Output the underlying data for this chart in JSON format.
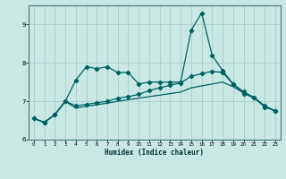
{
  "xlabel": "Humidex (Indice chaleur)",
  "xlim": [
    -0.5,
    23.5
  ],
  "ylim": [
    6,
    9.5
  ],
  "yticks": [
    6,
    7,
    8,
    9
  ],
  "xticks": [
    0,
    1,
    2,
    3,
    4,
    5,
    6,
    7,
    8,
    9,
    10,
    11,
    12,
    13,
    14,
    15,
    16,
    17,
    18,
    19,
    20,
    21,
    22,
    23
  ],
  "bg_color": "#c8e8e4",
  "grid_color": "#a0c8c4",
  "line_color": "#006060",
  "series1_x": [
    0,
    1,
    2,
    3,
    4,
    5,
    6,
    7,
    8,
    9,
    10,
    11,
    12,
    13,
    14,
    15,
    16,
    17,
    18,
    19,
    20,
    21,
    22,
    23
  ],
  "series1_y": [
    6.55,
    6.45,
    6.65,
    7.0,
    7.55,
    7.9,
    7.85,
    7.9,
    7.75,
    7.75,
    7.45,
    7.5,
    7.5,
    7.5,
    7.5,
    8.85,
    9.3,
    8.2,
    7.8,
    7.45,
    7.2,
    7.1,
    6.85,
    6.75
  ],
  "series2_x": [
    0,
    1,
    2,
    3,
    4,
    5,
    6,
    7,
    8,
    9,
    10,
    11,
    12,
    13,
    14,
    15,
    16,
    17,
    18,
    19,
    20,
    21,
    22,
    23
  ],
  "series2_y": [
    6.55,
    6.45,
    6.65,
    7.0,
    6.88,
    6.92,
    6.96,
    7.0,
    7.08,
    7.12,
    7.18,
    7.28,
    7.35,
    7.42,
    7.48,
    7.65,
    7.72,
    7.78,
    7.75,
    7.45,
    7.25,
    7.1,
    6.88,
    6.75
  ],
  "series3_x": [
    0,
    1,
    2,
    3,
    4,
    5,
    6,
    7,
    8,
    9,
    10,
    11,
    12,
    13,
    14,
    15,
    16,
    17,
    18,
    19,
    20,
    21,
    22,
    23
  ],
  "series3_y": [
    6.55,
    6.45,
    6.65,
    7.0,
    6.82,
    6.87,
    6.91,
    6.95,
    7.0,
    7.04,
    7.08,
    7.12,
    7.16,
    7.2,
    7.24,
    7.35,
    7.4,
    7.45,
    7.5,
    7.38,
    7.22,
    7.08,
    6.88,
    6.75
  ]
}
